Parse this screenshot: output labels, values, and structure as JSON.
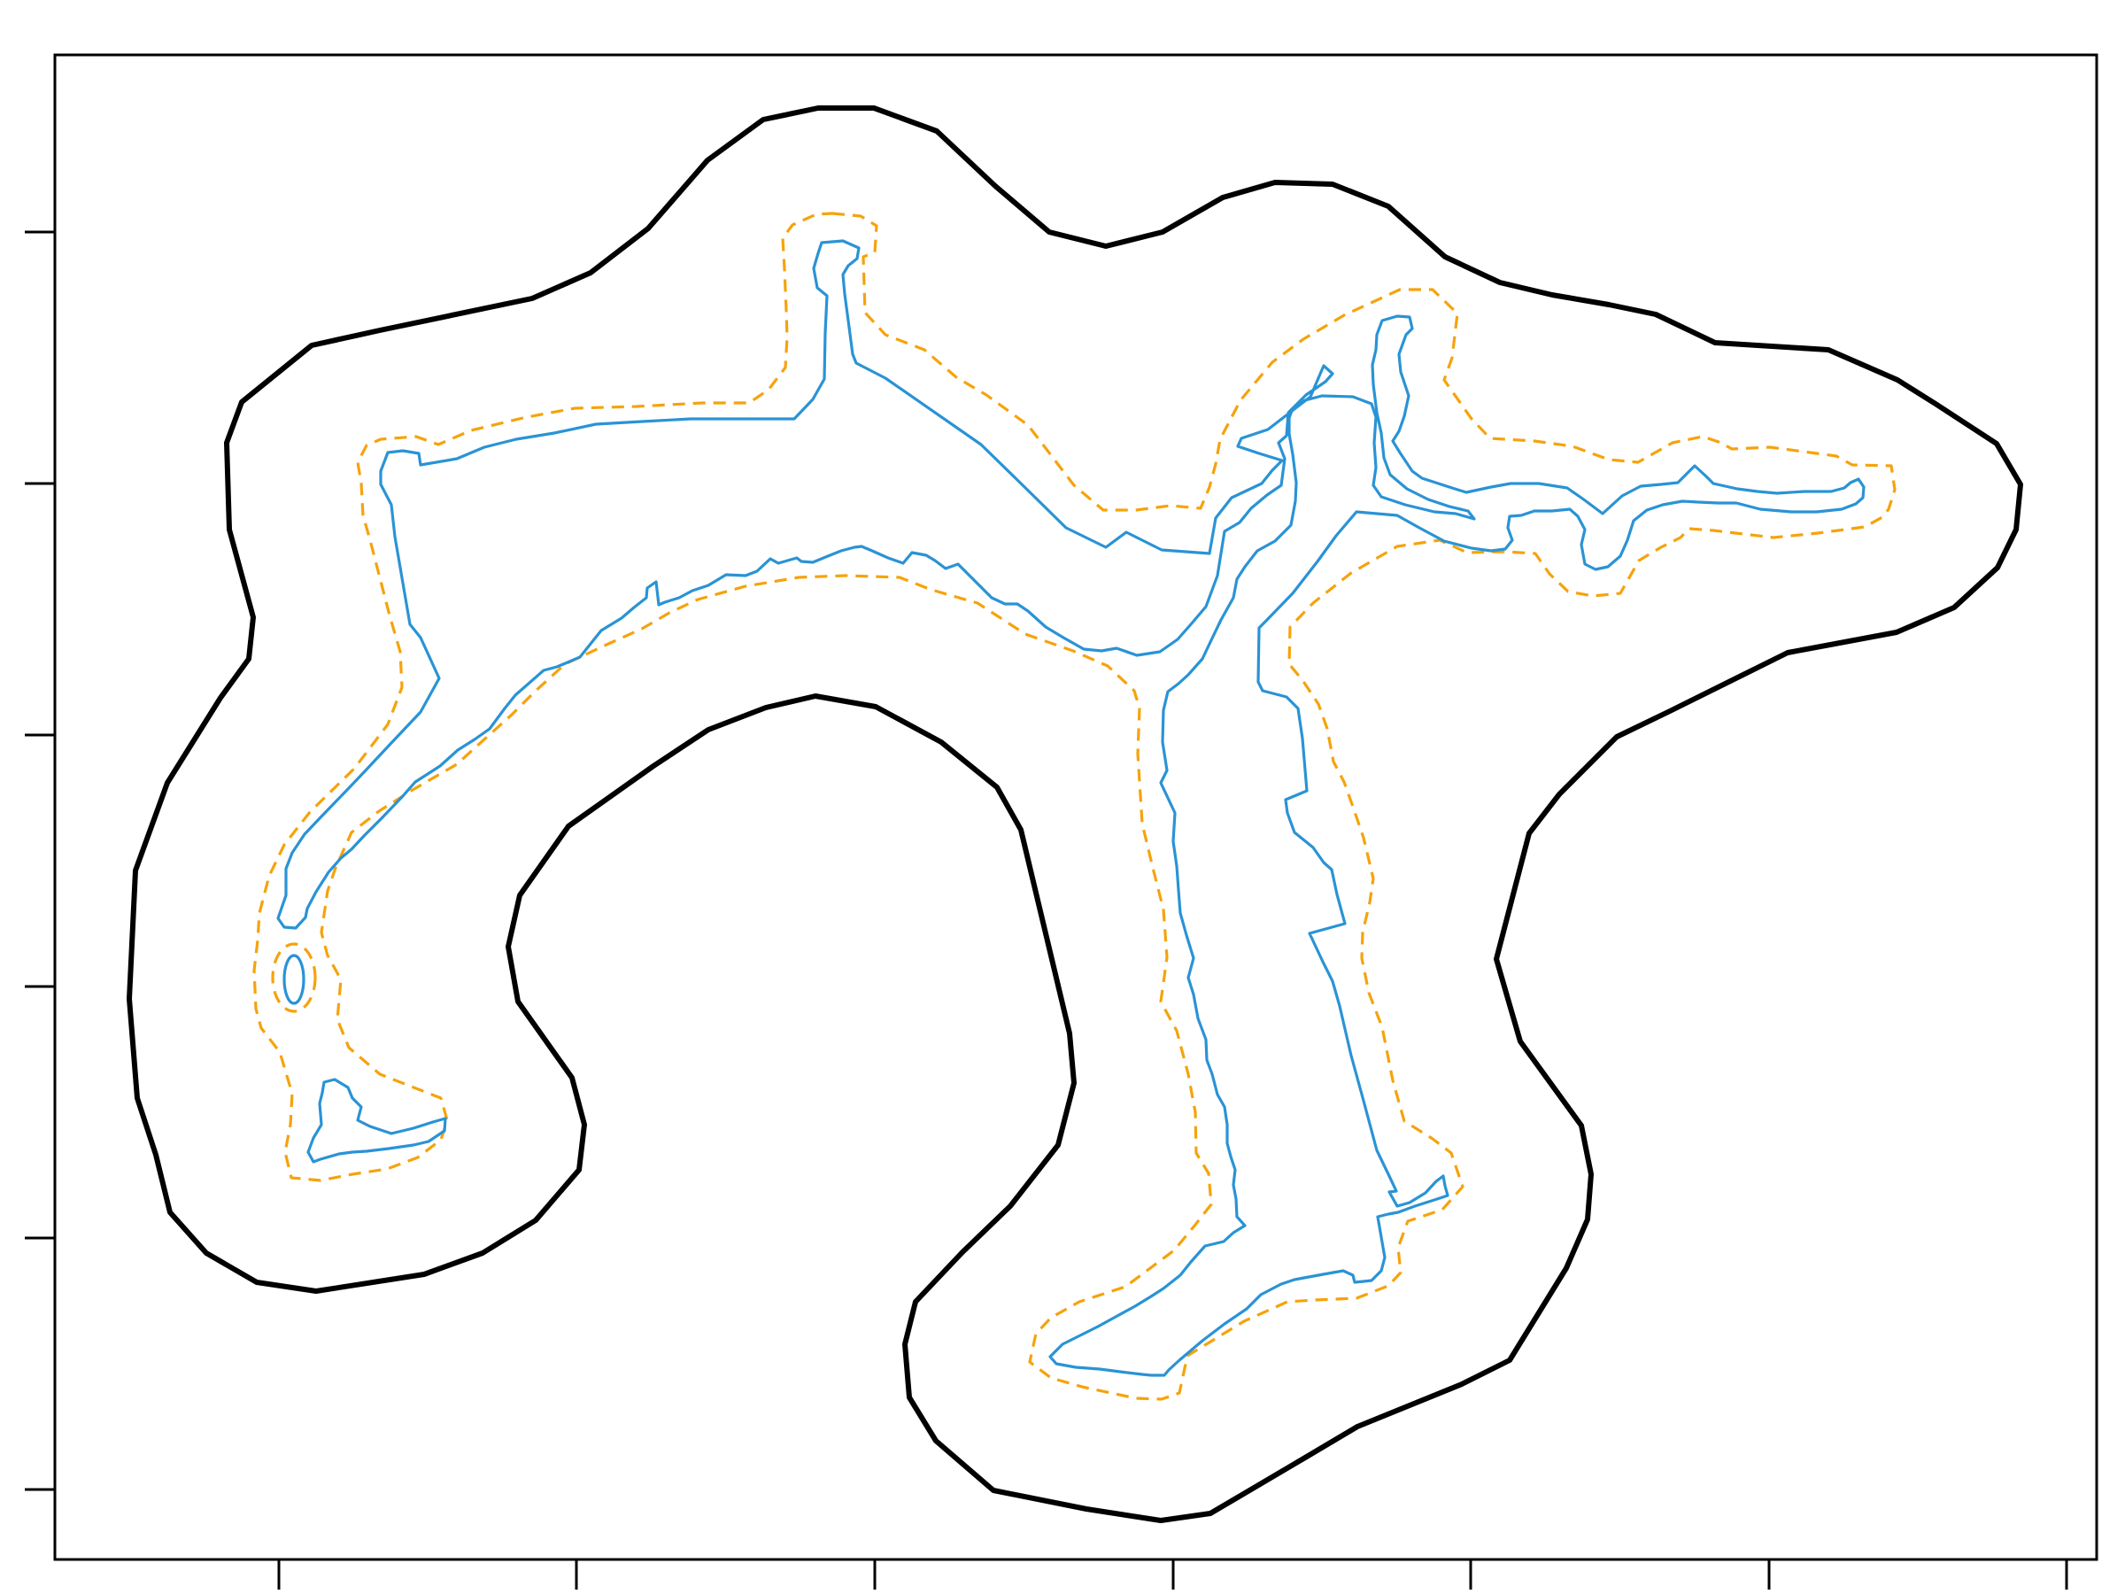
{
  "figure": {
    "frame": "box",
    "x_ticks": 7,
    "y_ticks": 6,
    "tick_labels": "none"
  },
  "layers": [
    {
      "name": "outer-boundary",
      "style": "solid",
      "color": "#000000"
    },
    {
      "name": "buffer-line",
      "style": "dashed",
      "color": "#f5a30c"
    },
    {
      "name": "coastline",
      "style": "solid",
      "color": "#2a93d5"
    }
  ]
}
